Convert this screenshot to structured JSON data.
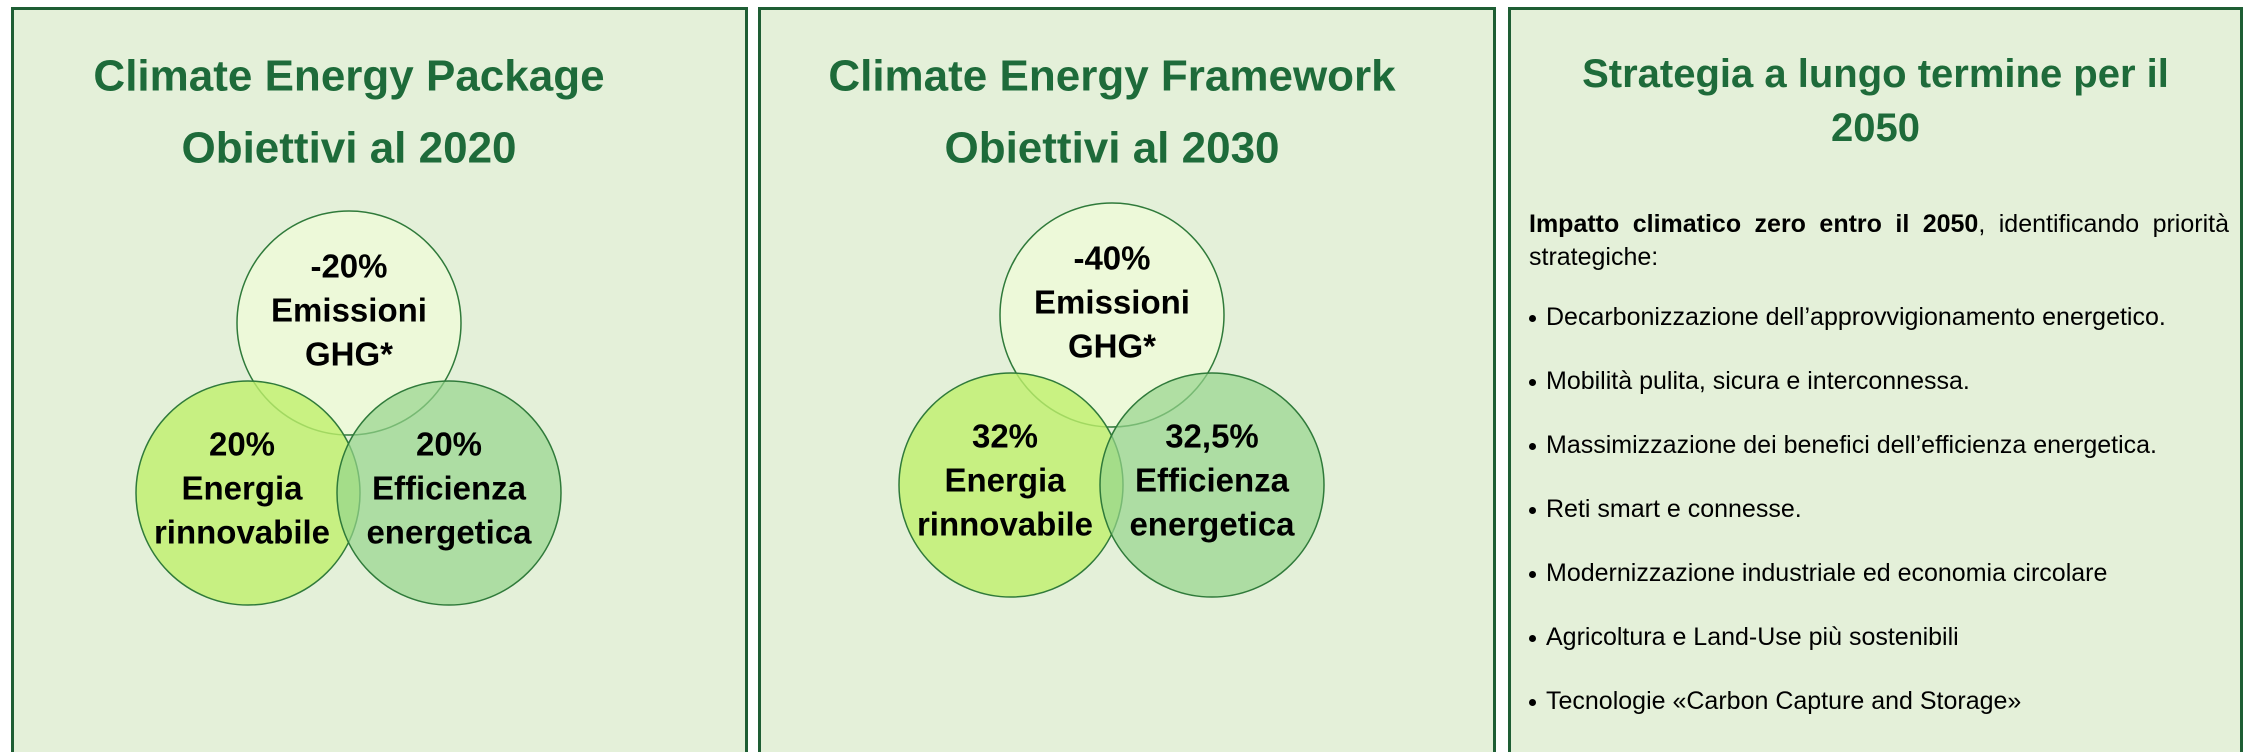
{
  "panels": [
    {
      "title": [
        "Climate Energy Package",
        "Obiettivi al 2020"
      ],
      "circles": [
        {
          "lines": [
            "-20%",
            "Emissioni",
            "GHG*"
          ]
        },
        {
          "lines": [
            "20%",
            "Energia",
            "rinnovabile"
          ]
        },
        {
          "lines": [
            "20%",
            "Efficienza",
            "energetica"
          ]
        }
      ]
    },
    {
      "title": [
        "Climate Energy Framework",
        "Obiettivi al 2030"
      ],
      "circles": [
        {
          "lines": [
            "-40%",
            "Emissioni",
            "GHG*"
          ]
        },
        {
          "lines": [
            "32%",
            "Energia",
            "rinnovabile"
          ]
        },
        {
          "lines": [
            "32,5%",
            "Efficienza",
            "energetica"
          ]
        }
      ]
    }
  ],
  "strategy": {
    "title": [
      "Strategia a lungo termine per il",
      "2050"
    ],
    "intro": {
      "bold": "Impatto climatico zero entro il 2050",
      "rest": ", identificando priorità strategiche:"
    },
    "bullets": [
      "Decarbonizzazione dell’approvvigionamento energetico.",
      "Mobilità pulita, sicura e interconnessa.",
      "Massimizzazione dei benefici dell’efficienza energetica.",
      "Reti smart e connesse.",
      "Modernizzazione industriale ed economia circolare",
      "Agricoltura e Land-Use più sostenibili",
      "Tecnologie «Carbon Capture and Storage»"
    ]
  }
}
